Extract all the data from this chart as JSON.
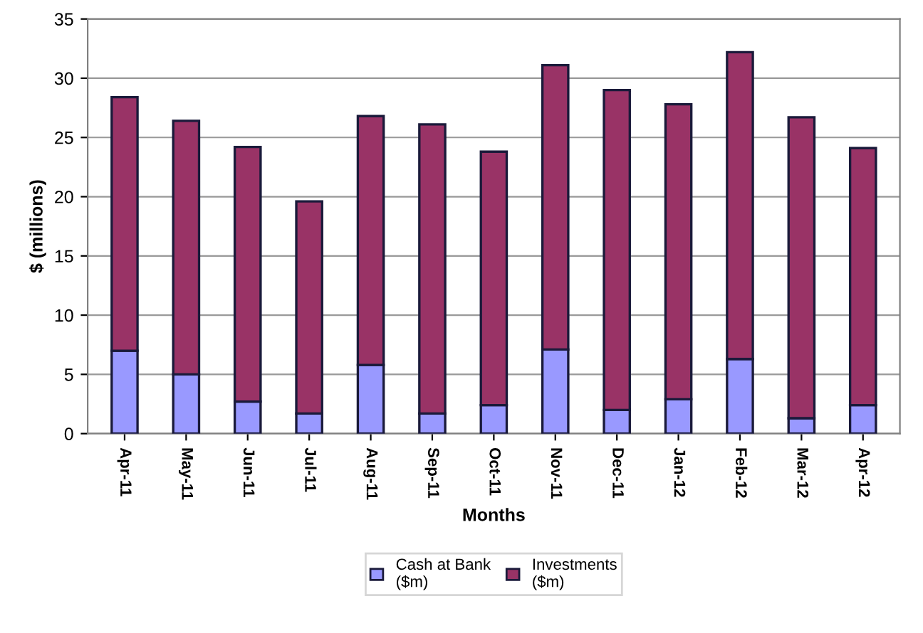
{
  "chart_data": {
    "type": "bar",
    "stacked": true,
    "xlabel": "Months",
    "ylabel": "$ (millions)",
    "categories": [
      "Apr-11",
      "May-11",
      "Jun-11",
      "Jul-11",
      "Aug-11",
      "Sep-11",
      "Oct-11",
      "Nov-11",
      "Dec-11",
      "Jan-12",
      "Feb-12",
      "Mar-12",
      "Apr-12"
    ],
    "series": [
      {
        "name": "Cash at Bank\n($m)",
        "color": "#9999ff",
        "values": [
          7.0,
          5.0,
          2.7,
          1.7,
          5.8,
          1.7,
          2.4,
          7.1,
          2.0,
          2.9,
          6.3,
          1.3,
          2.4
        ]
      },
      {
        "name": "Investments\n($m)",
        "color": "#993366",
        "values": [
          21.4,
          21.4,
          21.5,
          17.9,
          21.0,
          24.4,
          21.4,
          24.0,
          27.0,
          24.9,
          25.9,
          25.4,
          21.7
        ]
      }
    ],
    "ylim": [
      0,
      35
    ],
    "yticks": [
      0,
      5,
      10,
      15,
      20,
      25,
      30,
      35
    ],
    "grid": "y",
    "legend": "bottom"
  }
}
